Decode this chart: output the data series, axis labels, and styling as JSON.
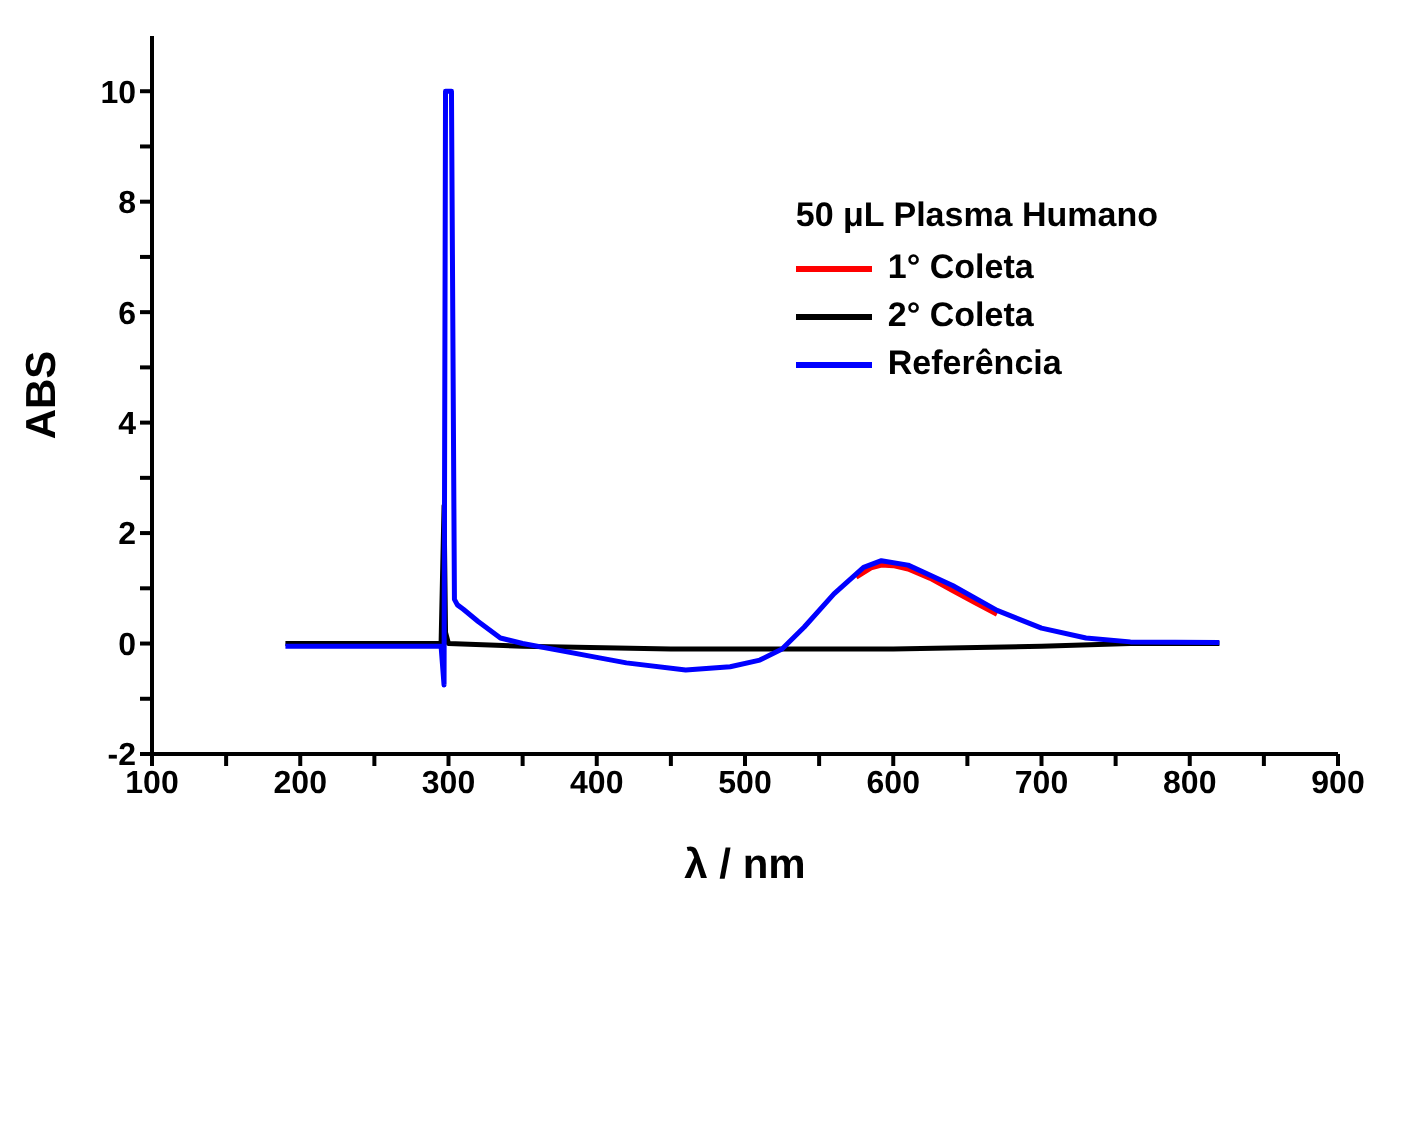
{
  "chart_data": {
    "type": "line",
    "xlabel": "λ / nm",
    "ylabel": "ABS",
    "legend_title": "50 μL Plasma Humano",
    "legend": "top right",
    "grid": false,
    "marker": "none",
    "line_style": "solid",
    "xlim": [
      100,
      900
    ],
    "xticks": [
      100,
      {
        "value": 150,
        "label": null
      },
      200,
      {
        "value": 250,
        "label": null
      },
      300,
      {
        "value": 350,
        "label": null
      },
      400,
      {
        "value": 450,
        "label": null
      },
      500,
      {
        "value": 550,
        "label": null
      },
      600,
      {
        "value": 650,
        "label": null
      },
      700,
      {
        "value": 750,
        "label": null
      },
      800,
      {
        "value": 850,
        "label": null
      },
      900
    ],
    "ylim": [
      -2,
      11
    ],
    "yticks": [
      -2,
      {
        "value": -1,
        "label": null
      },
      0,
      {
        "value": 1,
        "label": null
      },
      2,
      {
        "value": 3,
        "label": null
      },
      4,
      {
        "value": 5,
        "label": null
      },
      6,
      {
        "value": 7,
        "label": null
      },
      8,
      {
        "value": 9,
        "label": null
      },
      10
    ],
    "series": [
      {
        "name": "1° Coleta",
        "color": "#ff0000",
        "x": [
          575,
          585,
          592,
          600,
          610,
          625,
          640,
          655,
          670
        ],
        "values": [
          1.2,
          1.37,
          1.42,
          1.41,
          1.35,
          1.18,
          0.96,
          0.74,
          0.53
        ]
      },
      {
        "name": "2° Coleta",
        "color": "#000000",
        "x": [
          190,
          220,
          250,
          280,
          295,
          297,
          298,
          300,
          350,
          450,
          600,
          700,
          760,
          820
        ],
        "values": [
          0,
          0,
          0,
          0,
          0,
          2.5,
          0.2,
          0,
          -0.05,
          -0.1,
          -0.1,
          -0.05,
          0,
          0
        ]
      },
      {
        "name": "Referência",
        "color": "#0000ff",
        "x": [
          190,
          220,
          250,
          280,
          295,
          297,
          298,
          302,
          304,
          306,
          310,
          320,
          335,
          350,
          400,
          420,
          460,
          490,
          510,
          525,
          540,
          560,
          580,
          592,
          610,
          640,
          670,
          700,
          730,
          760,
          820
        ],
        "values": [
          -0.05,
          -0.05,
          -0.05,
          -0.05,
          -0.05,
          -0.75,
          10,
          10,
          0.8,
          0.7,
          0.62,
          0.4,
          0.1,
          0,
          -0.25,
          -0.35,
          -0.48,
          -0.42,
          -0.3,
          -0.1,
          0.3,
          0.9,
          1.38,
          1.5,
          1.42,
          1.05,
          0.6,
          0.28,
          0.1,
          0.03,
          0.02
        ]
      }
    ]
  }
}
